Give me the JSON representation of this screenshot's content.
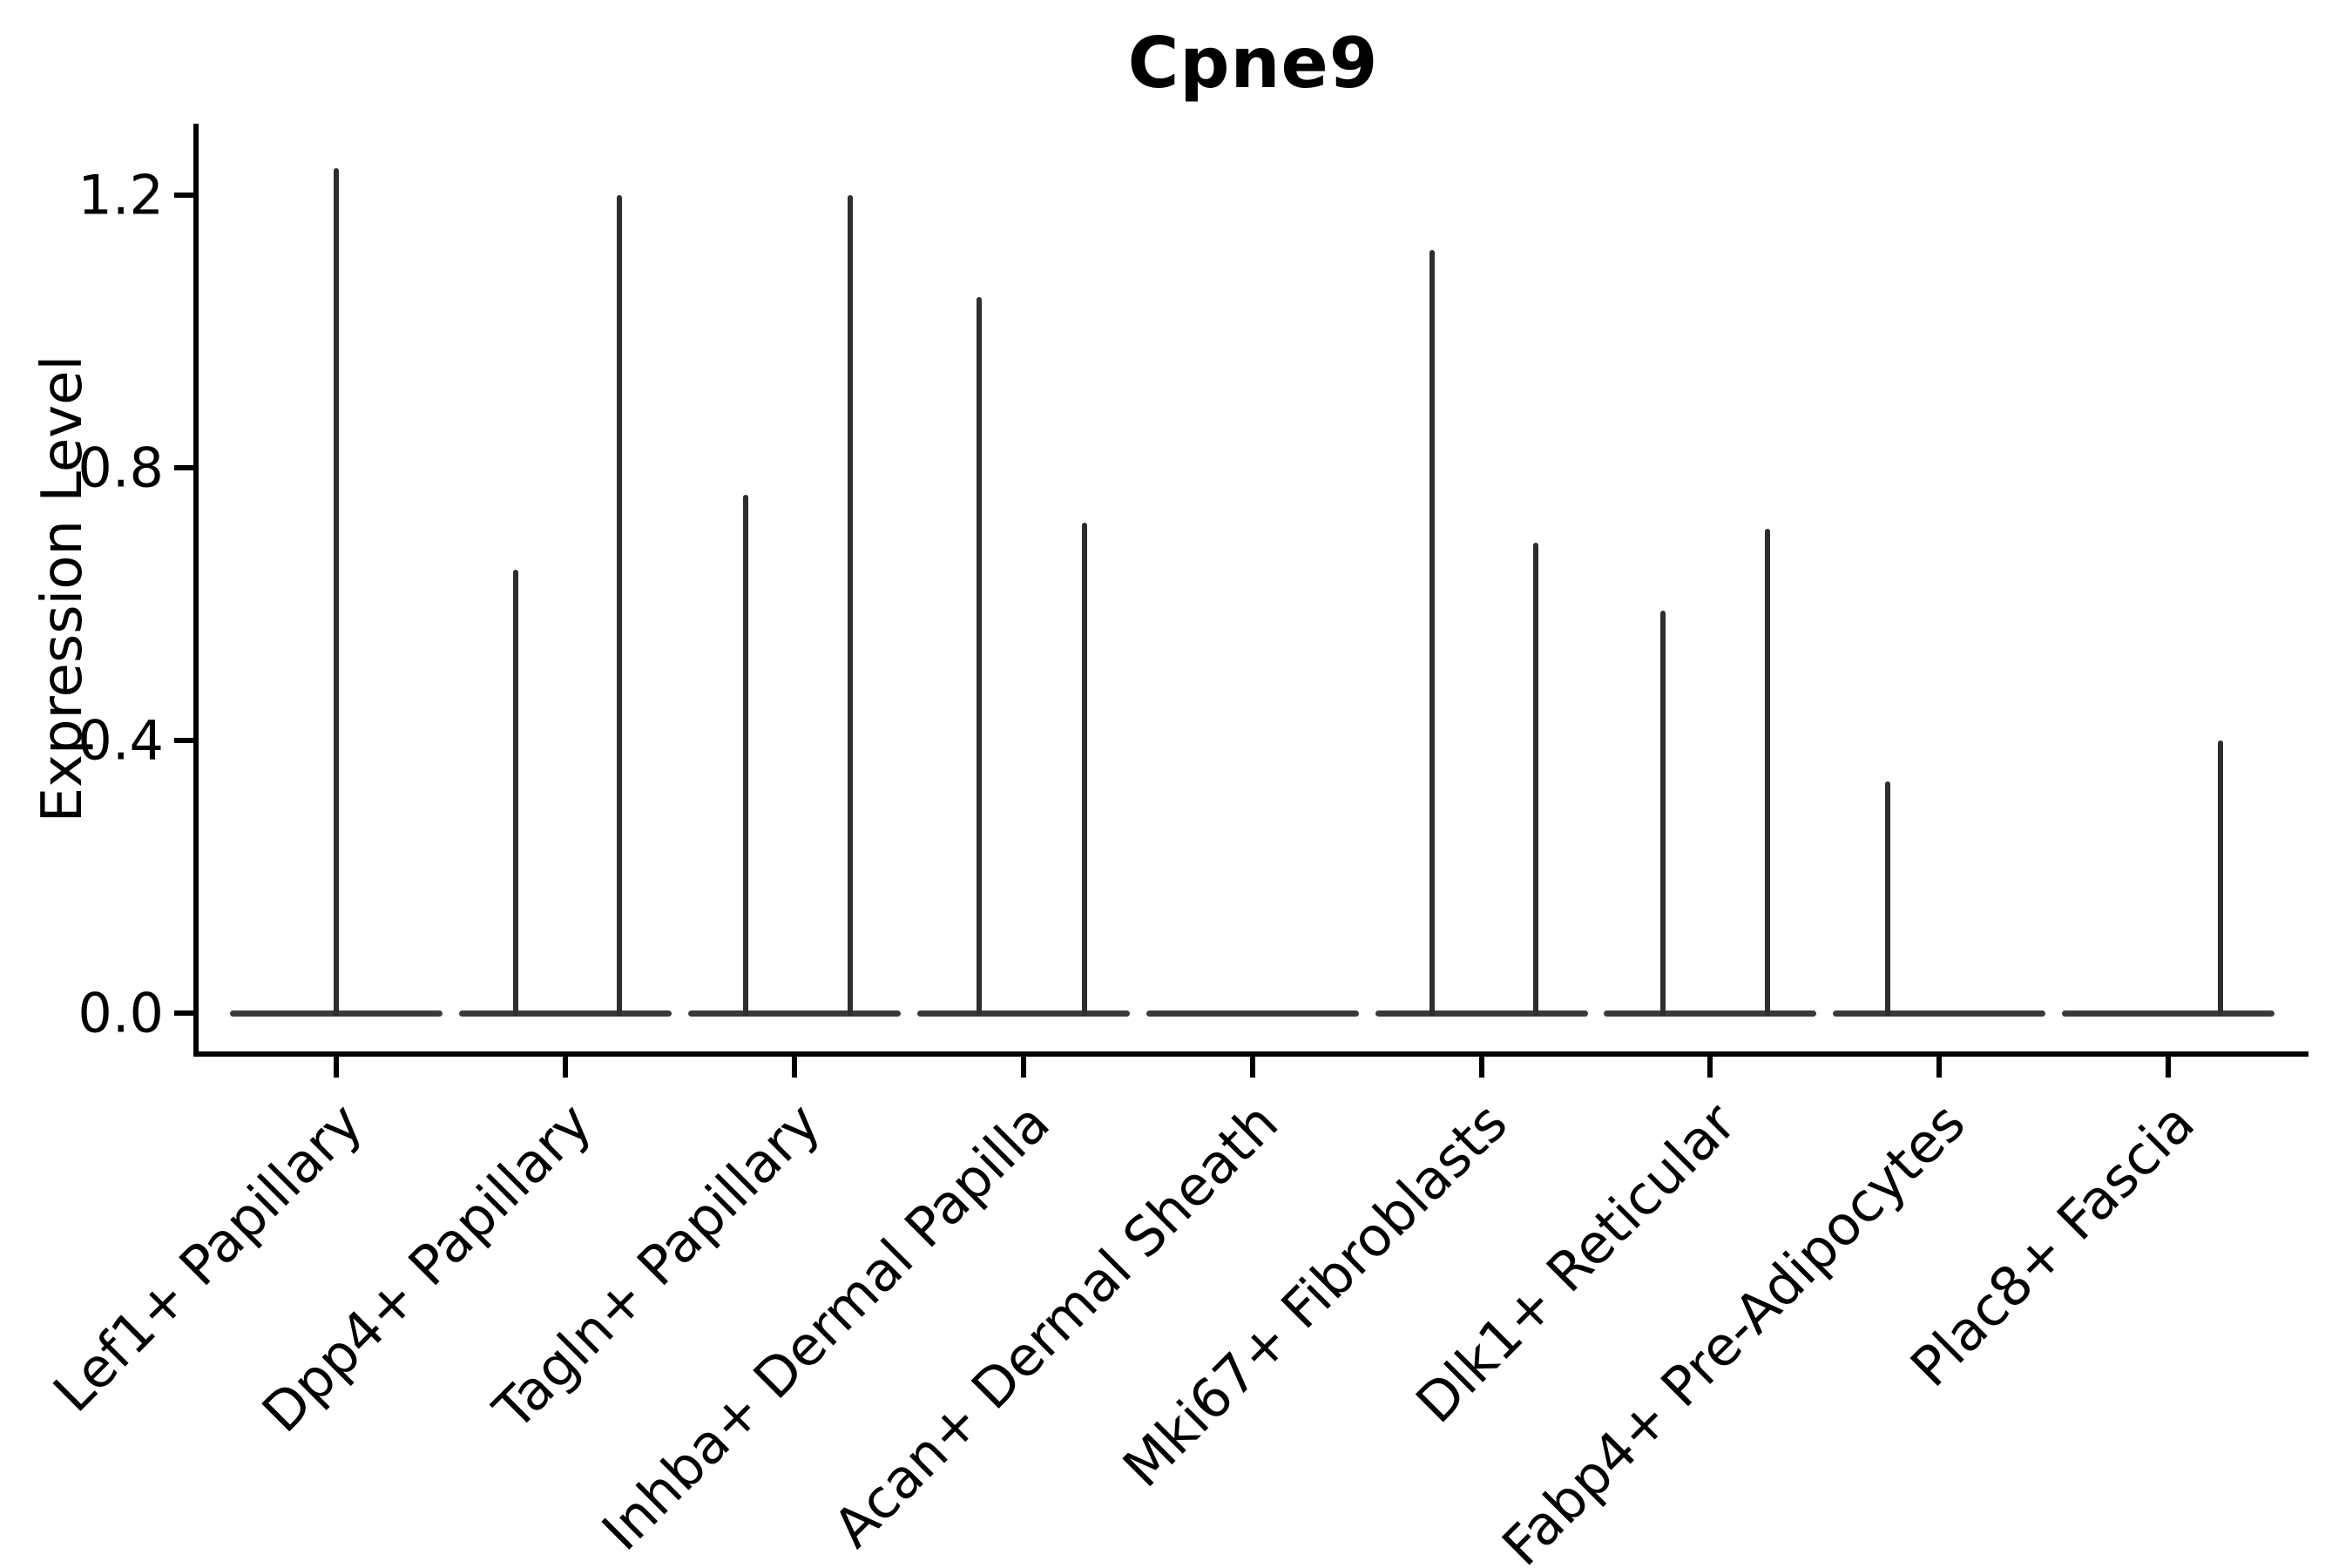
{
  "chart_data": {
    "type": "violin",
    "title": "Cpne9",
    "xlabel": "",
    "ylabel": "Expression Level",
    "yticks": [
      "0.0",
      "0.4",
      "0.8",
      "1.2"
    ],
    "ylim": [
      -0.06,
      1.31
    ],
    "grid": false,
    "legend": false,
    "categories": [
      "Lef1+ Papillary",
      "Dpp4+ Papillary",
      "Tagln+ Papillary",
      "Inhba+ Dermal Papilla",
      "Acan+ Dermal Sheath",
      "Mki67+ Fibroblasts",
      "Dlk1+ Reticular",
      "Fabp4+ Pre-Adipocytes",
      "Plac8+ Fascia"
    ],
    "violins": [
      {
        "category": "Lef1+ Papillary",
        "baseline_value": 0.0,
        "spikes": [
          {
            "dx": 0,
            "max": 1.24
          }
        ]
      },
      {
        "category": "Dpp4+ Papillary",
        "baseline_value": 0.0,
        "spikes": [
          {
            "dx": -57,
            "max": 0.65
          },
          {
            "dx": 62,
            "max": 1.2
          }
        ]
      },
      {
        "category": "Tagln+ Papillary",
        "baseline_value": 0.0,
        "spikes": [
          {
            "dx": -56,
            "max": 0.76
          },
          {
            "dx": 64,
            "max": 1.2
          }
        ]
      },
      {
        "category": "Inhba+ Dermal Papilla",
        "baseline_value": 0.0,
        "spikes": [
          {
            "dx": -51,
            "max": 1.05
          },
          {
            "dx": 70,
            "max": 0.72
          }
        ]
      },
      {
        "category": "Acan+ Dermal Sheath",
        "baseline_value": 0.0,
        "spikes": []
      },
      {
        "category": "Mki67+ Fibroblasts",
        "baseline_value": 0.0,
        "spikes": [
          {
            "dx": -57,
            "max": 1.12
          },
          {
            "dx": 62,
            "max": 0.69
          }
        ]
      },
      {
        "category": "Dlk1+ Reticular",
        "baseline_value": 0.0,
        "spikes": [
          {
            "dx": -54,
            "max": 0.59
          },
          {
            "dx": 66,
            "max": 0.71
          }
        ]
      },
      {
        "category": "Fabp4+ Pre-Adipocytes",
        "baseline_value": 0.0,
        "spikes": [
          {
            "dx": -59,
            "max": 0.34
          }
        ]
      },
      {
        "category": "Plac8+ Fascia",
        "baseline_value": 0.0,
        "spikes": [
          {
            "dx": 60,
            "max": 0.4
          }
        ]
      }
    ],
    "colors": {
      "violin_body": "#3a3a3a",
      "spike": "#2e2e2e",
      "axis": "#000000",
      "text": "#000000",
      "background": "#ffffff"
    }
  }
}
